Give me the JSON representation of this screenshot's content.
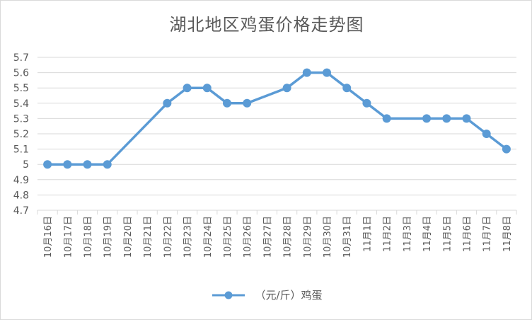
{
  "chart_data": {
    "type": "line",
    "title": "湖北地区鸡蛋价格走势图",
    "categories": [
      "10月16日",
      "10月17日",
      "10月18日",
      "10月19日",
      "10月20日",
      "10月21日",
      "10月22日",
      "10月23日",
      "10月24日",
      "10月25日",
      "10月26日",
      "10月27日",
      "10月28日",
      "10月29日",
      "10月30日",
      "10月31日",
      "11月1日",
      "11月2日",
      "11月3日",
      "11月4日",
      "11月5日",
      "11月6日",
      "11月7日",
      "11月8日"
    ],
    "series": [
      {
        "name": "（元/斤）鸡蛋",
        "values": [
          5.0,
          5.0,
          5.0,
          5.0,
          null,
          null,
          5.4,
          5.5,
          5.5,
          5.4,
          5.4,
          null,
          5.5,
          5.6,
          5.6,
          5.5,
          5.4,
          5.3,
          null,
          5.3,
          5.3,
          5.3,
          5.2,
          5.1
        ],
        "color": "#5b9bd5"
      }
    ],
    "ylim": [
      4.7,
      5.7
    ],
    "yticks": [
      "4.7",
      "4.8",
      "4.9",
      "5",
      "5.1",
      "5.2",
      "5.3",
      "5.4",
      "5.5",
      "5.6",
      "5.7"
    ],
    "grid": true,
    "legend_position": "bottom"
  }
}
